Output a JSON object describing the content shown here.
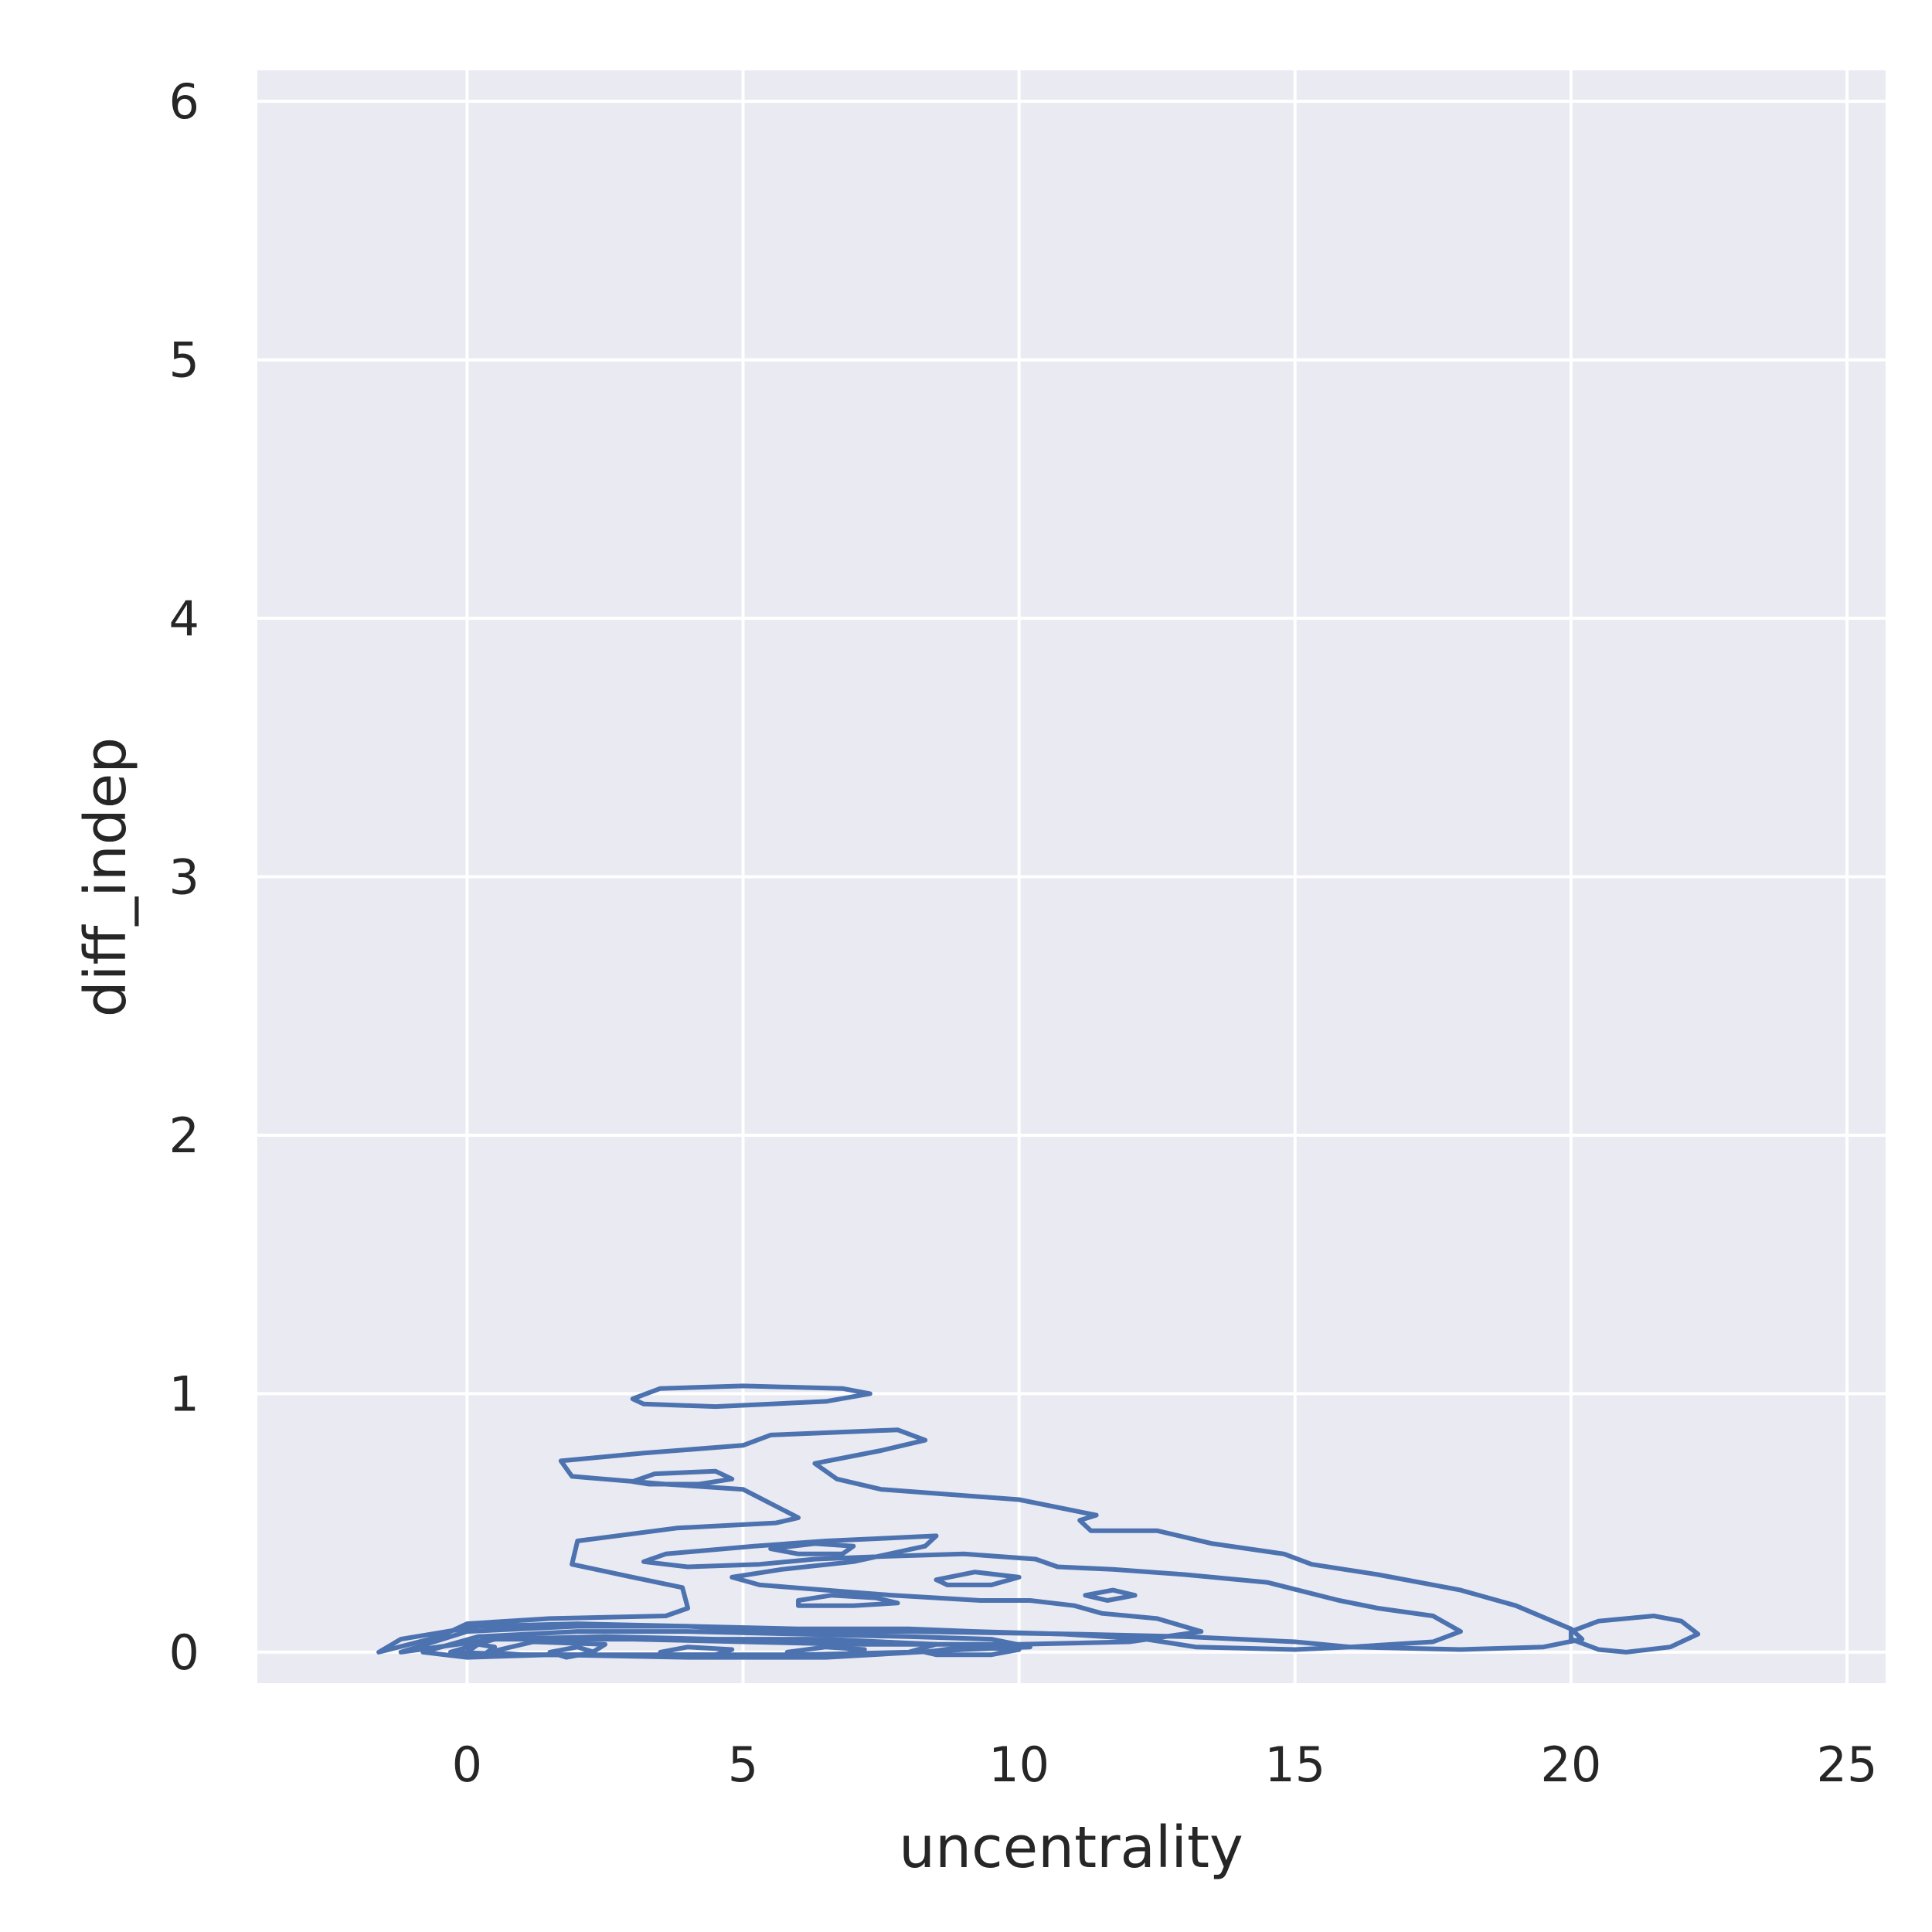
{
  "chart_data": {
    "type": "kde-contour",
    "xlabel": "uncentrality",
    "ylabel": "diff_indep",
    "xlim": [
      -3.8,
      25.7
    ],
    "ylim": [
      -0.12,
      6.12
    ],
    "x_ticks": [
      0,
      5,
      10,
      15,
      20,
      25
    ],
    "y_ticks": [
      0,
      1,
      2,
      3,
      4,
      5,
      6
    ],
    "grid": true,
    "colors": {
      "line": "#4c72b0",
      "background": "#eaeaf2",
      "grid": "#ffffff",
      "text": "#262626"
    },
    "contours": [
      {
        "level": 1,
        "points": [
          [
            -1.6,
            0.0
          ],
          [
            -1.2,
            0.05
          ],
          [
            0.2,
            0.1
          ],
          [
            2.0,
            0.11
          ],
          [
            4.0,
            0.1
          ],
          [
            5.5,
            0.08
          ],
          [
            8.0,
            0.08
          ],
          [
            11.0,
            0.07
          ],
          [
            13.0,
            0.06
          ],
          [
            15.0,
            0.04
          ],
          [
            16.0,
            0.02
          ],
          [
            18.0,
            0.01
          ],
          [
            19.5,
            0.02
          ],
          [
            20.2,
            0.05
          ],
          [
            20.0,
            0.09
          ],
          [
            19.0,
            0.18
          ],
          [
            18.0,
            0.24
          ],
          [
            16.5,
            0.3
          ],
          [
            15.3,
            0.34
          ],
          [
            14.8,
            0.38
          ],
          [
            13.5,
            0.42
          ],
          [
            12.5,
            0.47
          ],
          [
            11.3,
            0.47
          ],
          [
            11.1,
            0.51
          ],
          [
            11.4,
            0.53
          ],
          [
            10.0,
            0.59
          ],
          [
            7.5,
            0.63
          ],
          [
            6.7,
            0.67
          ],
          [
            6.3,
            0.73
          ],
          [
            7.5,
            0.78
          ],
          [
            8.3,
            0.82
          ],
          [
            7.8,
            0.86
          ],
          [
            5.5,
            0.84
          ],
          [
            5.0,
            0.8
          ],
          [
            3.2,
            0.77
          ],
          [
            1.7,
            0.74
          ],
          [
            1.9,
            0.68
          ],
          [
            3.6,
            0.65
          ],
          [
            5.0,
            0.63
          ],
          [
            6.0,
            0.52
          ],
          [
            5.6,
            0.5
          ],
          [
            3.8,
            0.48
          ],
          [
            2.0,
            0.43
          ],
          [
            1.9,
            0.34
          ],
          [
            3.0,
            0.29
          ],
          [
            3.9,
            0.25
          ],
          [
            4.0,
            0.17
          ],
          [
            3.6,
            0.14
          ],
          [
            1.5,
            0.13
          ],
          [
            0.0,
            0.11
          ],
          [
            -0.5,
            0.06
          ],
          [
            -1.6,
            0.0
          ]
        ]
      },
      {
        "level": 2,
        "points": [
          [
            -1.2,
            0.0
          ],
          [
            0.0,
            0.08
          ],
          [
            2.0,
            0.1
          ],
          [
            4.0,
            0.1
          ],
          [
            6.0,
            0.09
          ],
          [
            8.0,
            0.09
          ],
          [
            9.2,
            0.08
          ],
          [
            10.8,
            0.07
          ],
          [
            12.3,
            0.05
          ],
          [
            13.2,
            0.02
          ],
          [
            15.0,
            0.01
          ],
          [
            16.0,
            0.02
          ],
          [
            17.5,
            0.04
          ],
          [
            18.0,
            0.08
          ],
          [
            17.5,
            0.14
          ],
          [
            16.5,
            0.17
          ],
          [
            15.8,
            0.2
          ],
          [
            14.5,
            0.27
          ],
          [
            13.0,
            0.3
          ],
          [
            11.7,
            0.32
          ],
          [
            10.7,
            0.33
          ],
          [
            10.3,
            0.36
          ],
          [
            9.0,
            0.38
          ],
          [
            7.5,
            0.37
          ],
          [
            6.3,
            0.36
          ],
          [
            5.3,
            0.34
          ],
          [
            4.0,
            0.33
          ],
          [
            3.2,
            0.35
          ],
          [
            3.6,
            0.38
          ],
          [
            5.2,
            0.41
          ],
          [
            6.5,
            0.43
          ],
          [
            7.5,
            0.44
          ],
          [
            8.5,
            0.45
          ],
          [
            8.3,
            0.41
          ],
          [
            7.0,
            0.35
          ],
          [
            5.7,
            0.32
          ],
          [
            4.8,
            0.29
          ],
          [
            5.3,
            0.26
          ],
          [
            6.5,
            0.24
          ],
          [
            7.7,
            0.22
          ],
          [
            9.3,
            0.2
          ],
          [
            10.2,
            0.2
          ],
          [
            11.0,
            0.18
          ],
          [
            11.5,
            0.15
          ],
          [
            12.5,
            0.13
          ],
          [
            13.3,
            0.08
          ],
          [
            12.0,
            0.04
          ],
          [
            10.0,
            0.03
          ],
          [
            7.0,
            0.03
          ],
          [
            5.0,
            0.04
          ],
          [
            3.0,
            0.05
          ],
          [
            0.5,
            0.05
          ],
          [
            -1.2,
            0.0
          ]
        ]
      },
      {
        "level": 3,
        "points": [
          [
            3.0,
            0.98
          ],
          [
            3.5,
            1.02
          ],
          [
            5.0,
            1.03
          ],
          [
            6.8,
            1.02
          ],
          [
            7.3,
            1.0
          ],
          [
            6.5,
            0.97
          ],
          [
            4.5,
            0.95
          ],
          [
            3.2,
            0.96
          ],
          [
            3.0,
            0.98
          ]
        ]
      },
      {
        "level": 4,
        "points": [
          [
            3.0,
            0.66
          ],
          [
            3.4,
            0.69
          ],
          [
            4.5,
            0.7
          ],
          [
            4.8,
            0.67
          ],
          [
            4.2,
            0.65
          ],
          [
            3.3,
            0.65
          ],
          [
            3.0,
            0.66
          ]
        ]
      },
      {
        "level": 5,
        "points": [
          [
            5.5,
            0.4
          ],
          [
            6.3,
            0.42
          ],
          [
            7.0,
            0.41
          ],
          [
            6.8,
            0.38
          ],
          [
            6.0,
            0.38
          ],
          [
            5.5,
            0.4
          ]
        ]
      },
      {
        "level": 6,
        "points": [
          [
            6.0,
            0.2
          ],
          [
            6.6,
            0.22
          ],
          [
            7.4,
            0.21
          ],
          [
            7.8,
            0.19
          ],
          [
            7.0,
            0.18
          ],
          [
            6.0,
            0.18
          ],
          [
            6.0,
            0.2
          ]
        ]
      },
      {
        "level": 7,
        "points": [
          [
            8.5,
            0.28
          ],
          [
            9.2,
            0.31
          ],
          [
            10.0,
            0.29
          ],
          [
            9.5,
            0.26
          ],
          [
            8.7,
            0.26
          ],
          [
            8.5,
            0.28
          ]
        ]
      },
      {
        "level": 8,
        "points": [
          [
            11.2,
            0.22
          ],
          [
            11.7,
            0.24
          ],
          [
            12.1,
            0.22
          ],
          [
            11.6,
            0.2
          ],
          [
            11.2,
            0.22
          ]
        ]
      },
      {
        "level": 9,
        "points": [
          [
            20.0,
            0.08
          ],
          [
            20.5,
            0.12
          ],
          [
            21.5,
            0.14
          ],
          [
            22.0,
            0.12
          ],
          [
            22.3,
            0.07
          ],
          [
            21.8,
            0.02
          ],
          [
            21.0,
            0.0
          ],
          [
            20.5,
            0.01
          ],
          [
            20.0,
            0.05
          ],
          [
            20.0,
            0.08
          ]
        ]
      },
      {
        "level": 10,
        "points": [
          [
            -0.8,
            0.0
          ],
          [
            0.2,
            0.06
          ],
          [
            2.0,
            0.08
          ],
          [
            4.0,
            0.08
          ],
          [
            6.0,
            0.07
          ],
          [
            8.0,
            0.06
          ],
          [
            9.5,
            0.05
          ],
          [
            10.2,
            0.02
          ],
          [
            9.0,
            0.01
          ],
          [
            6.5,
            -0.02
          ],
          [
            4.0,
            -0.02
          ],
          [
            1.5,
            -0.01
          ],
          [
            0.0,
            -0.02
          ],
          [
            -0.8,
            0.0
          ]
        ]
      },
      {
        "level": 11,
        "points": [
          [
            -0.3,
            0.0
          ],
          [
            0.5,
            0.05
          ],
          [
            2.5,
            0.06
          ],
          [
            4.5,
            0.05
          ],
          [
            6.5,
            0.05
          ],
          [
            8.5,
            0.03
          ],
          [
            8.0,
            0.0
          ],
          [
            6.0,
            -0.01
          ],
          [
            3.0,
            -0.01
          ],
          [
            1.0,
            -0.01
          ],
          [
            -0.3,
            0.0
          ]
        ]
      },
      {
        "level": 12,
        "points": [
          [
            0.4,
            0.0
          ],
          [
            1.2,
            0.04
          ],
          [
            2.5,
            0.03
          ],
          [
            2.2,
            -0.01
          ],
          [
            1.0,
            -0.01
          ],
          [
            0.4,
            0.0
          ]
        ]
      },
      {
        "level": 13,
        "points": [
          [
            3.5,
            0.0
          ],
          [
            4.0,
            0.02
          ],
          [
            4.8,
            0.01
          ],
          [
            4.5,
            -0.01
          ],
          [
            3.6,
            -0.01
          ],
          [
            3.5,
            0.0
          ]
        ]
      },
      {
        "level": 14,
        "points": [
          [
            5.8,
            0.0
          ],
          [
            6.5,
            0.02
          ],
          [
            7.2,
            0.01
          ],
          [
            6.8,
            -0.01
          ],
          [
            5.9,
            -0.01
          ],
          [
            5.8,
            0.0
          ]
        ]
      },
      {
        "level": 15,
        "points": [
          [
            8.3,
            0.0
          ],
          [
            9.0,
            0.02
          ],
          [
            10.0,
            0.01
          ],
          [
            9.5,
            -0.01
          ],
          [
            8.5,
            -0.01
          ],
          [
            8.3,
            0.0
          ]
        ]
      },
      {
        "level": 16,
        "points": [
          [
            0.0,
            0.0
          ],
          [
            0.2,
            0.03
          ],
          [
            0.5,
            0.02
          ],
          [
            0.3,
            -0.01
          ],
          [
            0.0,
            0.0
          ]
        ]
      },
      {
        "level": 17,
        "points": [
          [
            1.5,
            0.0
          ],
          [
            2.0,
            0.02
          ],
          [
            2.3,
            0.0
          ],
          [
            1.8,
            -0.02
          ],
          [
            1.5,
            0.0
          ]
        ]
      }
    ]
  }
}
